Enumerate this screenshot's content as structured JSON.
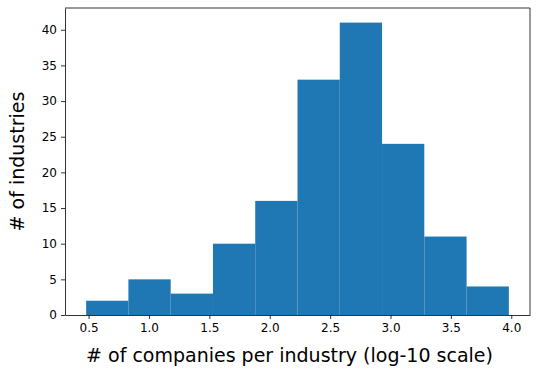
{
  "chart_data": {
    "type": "histogram",
    "xlabel": "# of companies per industry (log-10 scale)",
    "ylabel": "# of industries",
    "bins": [
      0.48,
      0.83,
      1.18,
      1.53,
      1.88,
      2.23,
      2.58,
      2.93,
      3.28,
      3.63,
      3.98
    ],
    "counts": [
      2,
      5,
      3,
      10,
      16,
      33,
      41,
      24,
      11,
      4
    ],
    "color": "#1f77b4",
    "xlim": [
      0.305,
      4.155
    ],
    "ylim": [
      0,
      43.05
    ],
    "xticks": [
      0.5,
      {
        "value": 1.0,
        "label": "1.0"
      },
      1.5,
      {
        "value": 2.0,
        "label": "2.0"
      },
      2.5,
      {
        "value": 3.0,
        "label": "3.0"
      },
      3.5,
      {
        "value": 4.0,
        "label": "4.0"
      }
    ],
    "yticks": [
      0,
      5,
      10,
      15,
      20,
      25,
      30,
      35,
      40
    ]
  }
}
